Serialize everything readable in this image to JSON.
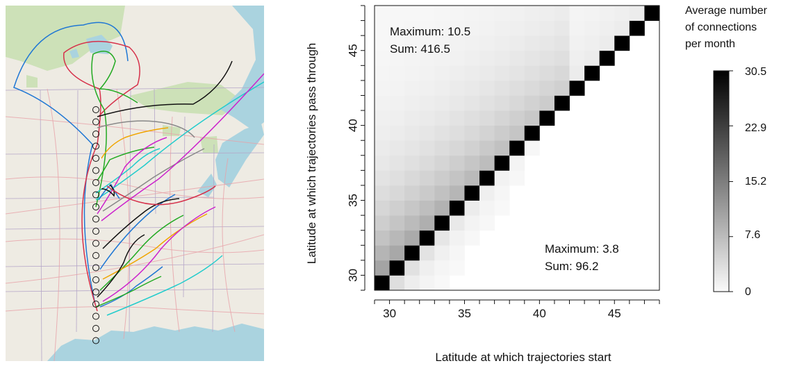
{
  "map_panel": {
    "colors": {
      "land": "#eeebe3",
      "water": "#aad3df",
      "forest": "#c7dfb0",
      "boundary": "#b5a6c8",
      "road": "#e7a1a8",
      "circle": "#111111"
    },
    "trajectory_colors": [
      "#1f77d4",
      "#d6304a",
      "#22aa22",
      "#111111",
      "#cc22cc",
      "#f0a500",
      "#22cccc",
      "#888888"
    ]
  },
  "chart_data": {
    "type": "heatmap",
    "xlabel": "Latitude at which trajectories start",
    "ylabel": "Latitude at which trajectories pass through",
    "x_range": [
      29,
      48
    ],
    "y_range": [
      29,
      48
    ],
    "x_ticks": [
      30,
      35,
      40,
      45
    ],
    "y_ticks": [
      30,
      35,
      40,
      45
    ],
    "diagonal_intensity": 30.5,
    "upper_triangle": {
      "label_max": "Maximum: 10.5",
      "label_sum": "Sum: 416.5"
    },
    "lower_triangle": {
      "label_max": "Maximum: 3.8",
      "label_sum": "Sum: 96.2"
    },
    "colorbar": {
      "title_lines": [
        "Average number",
        "of connections",
        "per month"
      ],
      "min": 0,
      "max": 30.5,
      "ticks": [
        "30.5",
        "22.9",
        "15.2",
        "7.6",
        "0"
      ]
    }
  }
}
